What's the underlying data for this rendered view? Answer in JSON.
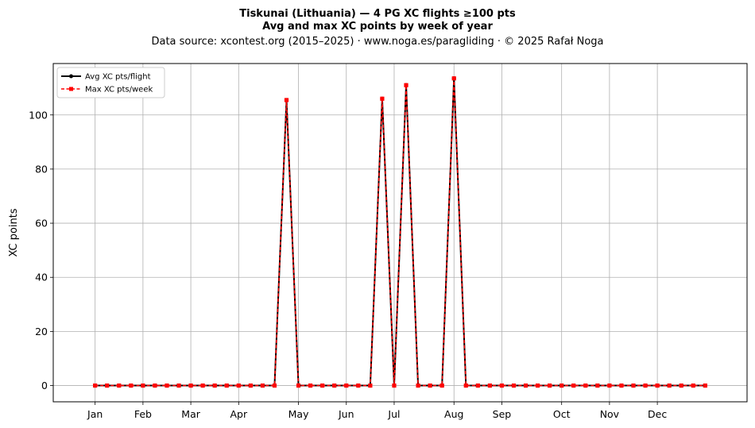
{
  "chart_data": {
    "type": "line",
    "title": "Tiskunai (Lithuania)  —  4 PG XC flights ≥100 pts",
    "subtitle": "Avg and max XC points by week of year",
    "source": "Data source: xcontest.org (2015–2025)  ·  www.noga.es/paragliding  ·  © 2025 Rafał Noga",
    "ylabel": "XC points",
    "xlim": [
      -2.5,
      55.5
    ],
    "ylim": [
      -6,
      119
    ],
    "yticks": [
      0,
      20,
      40,
      60,
      80,
      100
    ],
    "month_ticks": [
      {
        "label": "Jan",
        "x": 1
      },
      {
        "label": "Feb",
        "x": 5
      },
      {
        "label": "Mar",
        "x": 9
      },
      {
        "label": "Apr",
        "x": 13
      },
      {
        "label": "May",
        "x": 18
      },
      {
        "label": "Jun",
        "x": 22
      },
      {
        "label": "Jul",
        "x": 26
      },
      {
        "label": "Aug",
        "x": 31
      },
      {
        "label": "Sep",
        "x": 35
      },
      {
        "label": "Oct",
        "x": 40
      },
      {
        "label": "Nov",
        "x": 44
      },
      {
        "label": "Dec",
        "x": 48
      }
    ],
    "grid": true,
    "legend_position": "top-left",
    "x": [
      1,
      2,
      3,
      4,
      5,
      6,
      7,
      8,
      9,
      10,
      11,
      12,
      13,
      14,
      15,
      16,
      17,
      18,
      19,
      20,
      21,
      22,
      23,
      24,
      25,
      26,
      27,
      28,
      29,
      30,
      31,
      32,
      33,
      34,
      35,
      36,
      37,
      38,
      39,
      40,
      41,
      42,
      43,
      44,
      45,
      46,
      47,
      48,
      49,
      50,
      51,
      52
    ],
    "series": [
      {
        "name": "Avg XC pts/flight",
        "color": "#000000",
        "style": "solid",
        "marker": "circle",
        "values": [
          0,
          0,
          0,
          0,
          0,
          0,
          0,
          0,
          0,
          0,
          0,
          0,
          0,
          0,
          0,
          0,
          105.5,
          0,
          0,
          0,
          0,
          0,
          0,
          0,
          106,
          0,
          111,
          0,
          0,
          0,
          113.5,
          0,
          0,
          0,
          0,
          0,
          0,
          0,
          0,
          0,
          0,
          0,
          0,
          0,
          0,
          0,
          0,
          0,
          0,
          0,
          0,
          0
        ]
      },
      {
        "name": "Max XC pts/week",
        "color": "#ff0000",
        "style": "dashed",
        "marker": "square",
        "values": [
          0,
          0,
          0,
          0,
          0,
          0,
          0,
          0,
          0,
          0,
          0,
          0,
          0,
          0,
          0,
          0,
          105.5,
          0,
          0,
          0,
          0,
          0,
          0,
          0,
          106,
          0,
          111,
          0,
          0,
          0,
          113.5,
          0,
          0,
          0,
          0,
          0,
          0,
          0,
          0,
          0,
          0,
          0,
          0,
          0,
          0,
          0,
          0,
          0,
          0,
          0,
          0,
          0
        ]
      }
    ]
  }
}
